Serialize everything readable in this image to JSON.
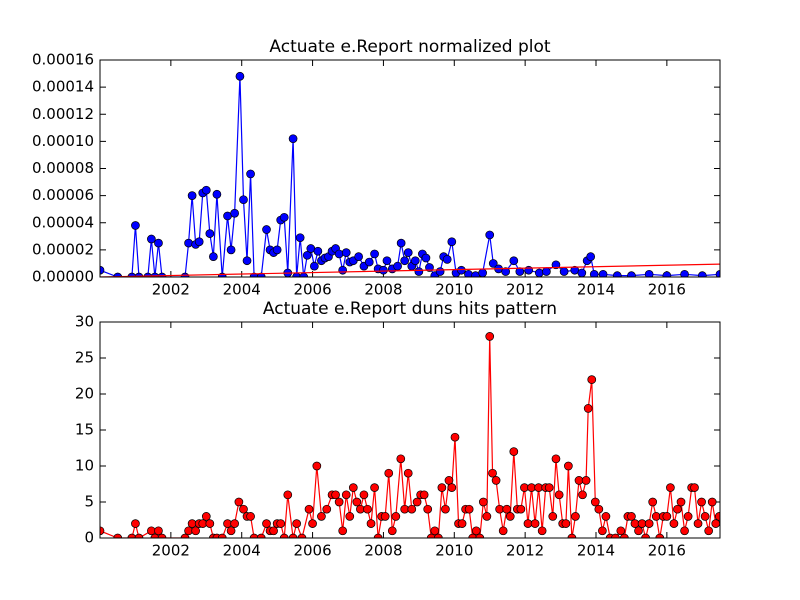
{
  "chart_data": [
    {
      "type": "line",
      "title": "Actuate e.Report normalized plot",
      "xlim": [
        2000,
        2017.5
      ],
      "xticks": [
        2002,
        2004,
        2006,
        2008,
        2010,
        2012,
        2014,
        2016
      ],
      "ylim": [
        0,
        0.00016
      ],
      "yticks": [
        {
          "value": 0,
          "label": "0.00000"
        },
        {
          "value": 2e-05,
          "label": "0.00002"
        },
        {
          "value": 4e-05,
          "label": "0.00004"
        },
        {
          "value": 6e-05,
          "label": "0.00006"
        },
        {
          "value": 8e-05,
          "label": "0.00008"
        },
        {
          "value": 0.0001,
          "label": "0.00010"
        },
        {
          "value": 0.00012,
          "label": "0.00012"
        },
        {
          "value": 0.00014,
          "label": "0.00014"
        },
        {
          "value": 0.00016,
          "label": "0.00016"
        }
      ],
      "grid": false,
      "series": [
        {
          "color": "#0000ff",
          "marker": "o",
          "marker_edge": "#000000",
          "x": [
            2000.0,
            2000.5,
            2000.9,
            2001.0,
            2001.1,
            2001.35,
            2001.45,
            2001.55,
            2001.65,
            2001.75,
            2002.4,
            2002.5,
            2002.6,
            2002.7,
            2002.8,
            2002.9,
            2003.0,
            2003.1,
            2003.2,
            2003.3,
            2003.45,
            2003.6,
            2003.7,
            2003.8,
            2003.95,
            2004.05,
            2004.15,
            2004.25,
            2004.35,
            2004.55,
            2004.7,
            2004.8,
            2004.9,
            2005.0,
            2005.1,
            2005.2,
            2005.3,
            2005.45,
            2005.55,
            2005.65,
            2005.75,
            2005.85,
            2005.95,
            2006.05,
            2006.15,
            2006.25,
            2006.35,
            2006.45,
            2006.55,
            2006.65,
            2006.75,
            2006.85,
            2006.95,
            2007.05,
            2007.15,
            2007.3,
            2007.45,
            2007.6,
            2007.75,
            2007.85,
            2008.0,
            2008.1,
            2008.25,
            2008.4,
            2008.5,
            2008.6,
            2008.7,
            2008.8,
            2008.9,
            2009.0,
            2009.1,
            2009.2,
            2009.3,
            2009.45,
            2009.6,
            2009.7,
            2009.8,
            2009.93,
            2010.05,
            2010.2,
            2010.4,
            2010.6,
            2010.8,
            2011.0,
            2011.1,
            2011.25,
            2011.45,
            2011.68,
            2011.85,
            2012.1,
            2012.4,
            2012.6,
            2012.87,
            2013.1,
            2013.4,
            2013.6,
            2013.75,
            2013.85,
            2013.95,
            2014.2,
            2014.6,
            2015.0,
            2015.5,
            2016.0,
            2016.5,
            2017.0,
            2017.5
          ],
          "values": [
            5e-06,
            0,
            0,
            3.8e-05,
            0,
            0,
            2.8e-05,
            0,
            2.5e-05,
            0,
            0,
            2.5e-05,
            6e-05,
            2.4e-05,
            2.6e-05,
            6.2e-05,
            6.4e-05,
            3.2e-05,
            1.5e-05,
            6.1e-05,
            0,
            4.5e-05,
            2e-05,
            4.7e-05,
            0.000148,
            5.7e-05,
            1.2e-05,
            7.6e-05,
            0,
            0,
            3.5e-05,
            2e-05,
            1.8e-05,
            2e-05,
            4.2e-05,
            4.4e-05,
            3e-06,
            0.000102,
            0,
            2.9e-05,
            0,
            1.6e-05,
            2.1e-05,
            8e-06,
            1.9e-05,
            1.2e-05,
            1.4e-05,
            1.5e-05,
            1.9e-05,
            2.1e-05,
            1.7e-05,
            5e-06,
            1.8e-05,
            1.1e-05,
            1.2e-05,
            1.5e-05,
            8e-06,
            1.1e-05,
            1.7e-05,
            6e-06,
            5e-06,
            1.2e-05,
            6e-06,
            8e-06,
            2.5e-05,
            1.2e-05,
            1.8e-05,
            8e-06,
            1.2e-05,
            4e-06,
            1.7e-05,
            1.4e-05,
            7e-06,
            1e-06,
            4e-06,
            1.5e-05,
            1.3e-05,
            2.6e-05,
            3e-06,
            5e-06,
            2e-06,
            1e-06,
            3e-06,
            3.1e-05,
            1e-05,
            6e-06,
            4e-06,
            1.2e-05,
            4e-06,
            5e-06,
            3e-06,
            4e-06,
            9e-06,
            4e-06,
            5e-06,
            3e-06,
            1.2e-05,
            1.5e-05,
            2e-06,
            2e-06,
            1e-06,
            1e-06,
            2e-06,
            1e-06,
            2e-06,
            1e-06,
            2e-06
          ]
        },
        {
          "color": "#ff0000",
          "marker": "none",
          "x": [
            2000,
            2017.5
          ],
          "values": [
            0,
            9.5e-06
          ]
        }
      ]
    },
    {
      "type": "line",
      "title": "Actuate e.Report duns hits pattern",
      "xlim": [
        2000,
        2017.5
      ],
      "xticks": [
        2002,
        2004,
        2006,
        2008,
        2010,
        2012,
        2014,
        2016
      ],
      "ylim": [
        0,
        30
      ],
      "yticks": [
        0,
        5,
        10,
        15,
        20,
        25,
        30
      ],
      "grid": false,
      "series": [
        {
          "color": "#ff0000",
          "marker": "o",
          "marker_edge": "#000000",
          "x": [
            2000.0,
            2000.5,
            2000.9,
            2001.0,
            2001.1,
            2001.45,
            2001.55,
            2001.65,
            2001.75,
            2002.4,
            2002.5,
            2002.6,
            2002.7,
            2002.8,
            2002.9,
            2003.0,
            2003.1,
            2003.2,
            2003.3,
            2003.45,
            2003.6,
            2003.7,
            2003.8,
            2003.92,
            2004.05,
            2004.15,
            2004.25,
            2004.35,
            2004.55,
            2004.7,
            2004.8,
            2004.9,
            2005.0,
            2005.1,
            2005.2,
            2005.3,
            2005.45,
            2005.55,
            2005.7,
            2005.9,
            2006.0,
            2006.12,
            2006.25,
            2006.4,
            2006.55,
            2006.65,
            2006.75,
            2006.85,
            2006.95,
            2007.05,
            2007.15,
            2007.25,
            2007.35,
            2007.45,
            2007.55,
            2007.65,
            2007.75,
            2007.85,
            2007.95,
            2008.05,
            2008.15,
            2008.25,
            2008.35,
            2008.49,
            2008.6,
            2008.7,
            2008.8,
            2008.95,
            2009.05,
            2009.15,
            2009.25,
            2009.35,
            2009.45,
            2009.55,
            2009.65,
            2009.75,
            2009.85,
            2009.93,
            2010.02,
            2010.12,
            2010.22,
            2010.32,
            2010.42,
            2010.52,
            2010.62,
            2010.72,
            2010.82,
            2010.92,
            2011.0,
            2011.08,
            2011.18,
            2011.28,
            2011.38,
            2011.48,
            2011.58,
            2011.68,
            2011.78,
            2011.88,
            2011.98,
            2012.08,
            2012.18,
            2012.28,
            2012.38,
            2012.48,
            2012.58,
            2012.68,
            2012.78,
            2012.87,
            2012.96,
            2013.06,
            2013.15,
            2013.22,
            2013.32,
            2013.42,
            2013.52,
            2013.62,
            2013.72,
            2013.78,
            2013.88,
            2013.98,
            2014.08,
            2014.18,
            2014.28,
            2014.4,
            2014.55,
            2014.7,
            2014.8,
            2014.9,
            2015.0,
            2015.1,
            2015.2,
            2015.3,
            2015.4,
            2015.5,
            2015.6,
            2015.7,
            2015.8,
            2015.9,
            2016.0,
            2016.1,
            2016.2,
            2016.3,
            2016.4,
            2016.5,
            2016.6,
            2016.7,
            2016.78,
            2016.88,
            2016.98,
            2017.08,
            2017.18,
            2017.28,
            2017.38,
            2017.48
          ],
          "values": [
            1,
            0,
            0,
            2,
            0,
            1,
            0,
            1,
            0,
            0,
            1,
            2,
            1,
            2,
            2,
            3,
            2,
            0,
            0,
            0,
            2,
            1,
            2,
            5,
            4,
            3,
            3,
            0,
            0,
            2,
            1,
            1,
            2,
            2,
            0,
            6,
            0,
            2,
            0,
            4,
            2,
            10,
            3,
            4,
            6,
            6,
            5,
            1,
            6,
            3,
            7,
            5,
            4,
            6,
            4,
            2,
            7,
            0,
            3,
            3,
            9,
            1,
            3,
            11,
            4,
            9,
            4,
            5,
            6,
            6,
            4,
            0,
            1,
            0,
            7,
            4,
            8,
            7,
            14,
            2,
            2,
            4,
            4,
            0,
            1,
            0,
            5,
            3,
            28,
            9,
            8,
            4,
            1,
            4,
            3,
            12,
            4,
            4,
            7,
            2,
            7,
            2,
            7,
            1,
            7,
            7,
            3,
            11,
            6,
            2,
            2,
            10,
            0,
            3,
            8,
            6,
            8,
            18,
            22,
            5,
            4,
            1,
            3,
            0,
            0,
            1,
            0,
            3,
            3,
            2,
            1,
            2,
            0,
            2,
            5,
            3,
            0,
            3,
            3,
            7,
            2,
            4,
            5,
            1,
            3,
            7,
            7,
            2,
            5,
            3,
            1,
            5,
            2,
            3
          ]
        }
      ]
    }
  ]
}
